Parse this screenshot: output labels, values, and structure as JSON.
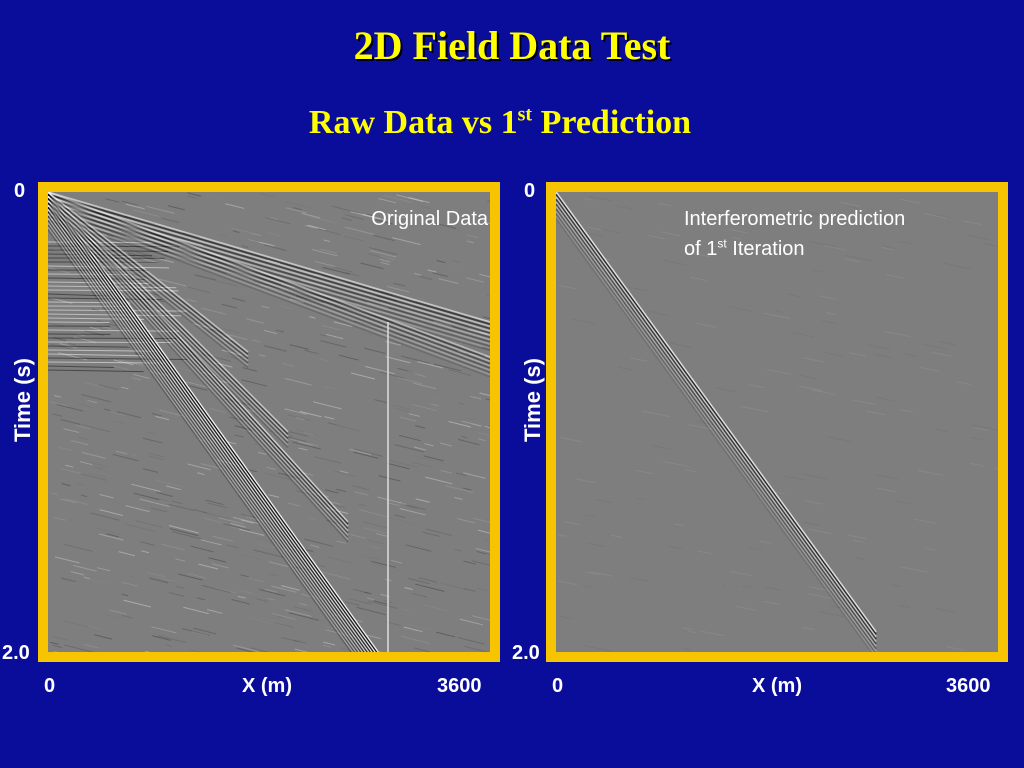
{
  "slide": {
    "title": "2D Field Data Test",
    "subtitle_pre": "Raw Data vs 1",
    "subtitle_sup": "st",
    "subtitle_post": " Prediction"
  },
  "left_panel": {
    "label": "Original Data",
    "y_label": "Time (s)",
    "y_min": "0",
    "y_max": "2.0",
    "x_label": "X (m)",
    "x_min": "0",
    "x_max": "3600"
  },
  "right_panel": {
    "label_line1": "Interferometric prediction",
    "label_line2_pre": "of 1",
    "label_line2_sup": "st",
    "label_line2_post": " Iteration",
    "y_label": "Time (s)",
    "y_min": "0",
    "y_max": "2.0",
    "x_label": "X (m)",
    "x_min": "0",
    "x_max": "3600"
  },
  "colors": {
    "background": "#0a0d99",
    "title": "#ffff00",
    "frame": "#f6c400",
    "seismic_bg": "#7e7e7e"
  }
}
